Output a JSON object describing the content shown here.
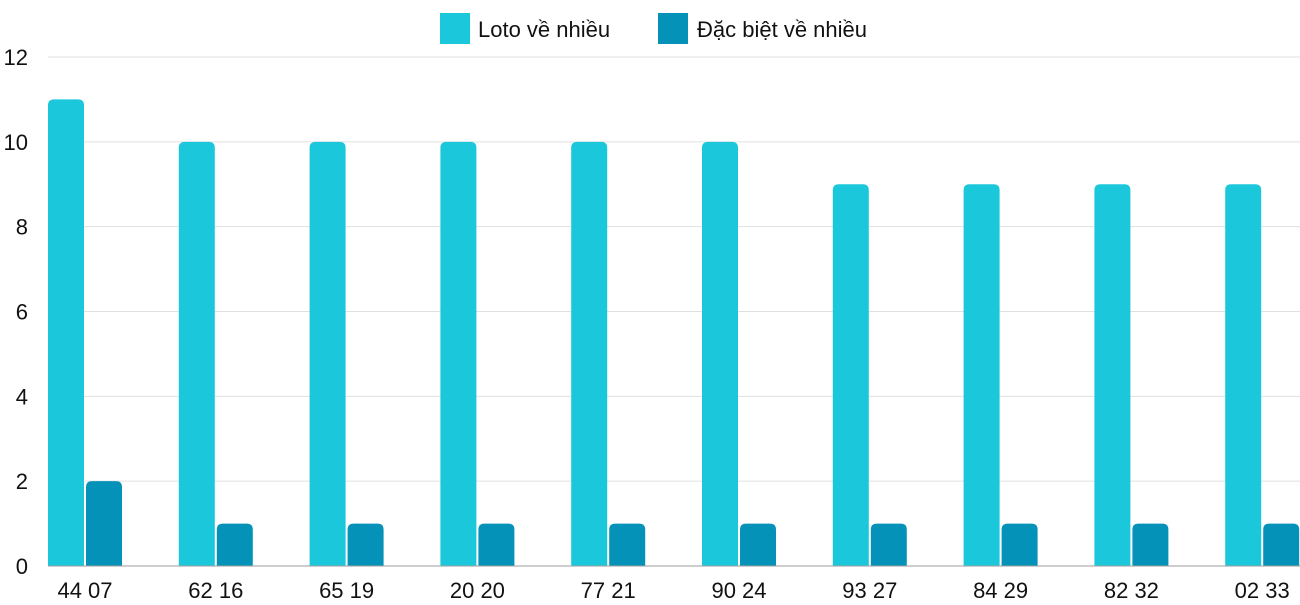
{
  "chart_data": {
    "type": "bar",
    "title": "",
    "xlabel": "",
    "ylabel": "",
    "categories": [
      "44 07",
      "62 16",
      "65 19",
      "20 20",
      "77 21",
      "90 24",
      "93 27",
      "84 29",
      "82 32",
      "02 33"
    ],
    "series": [
      {
        "name": "Loto về nhiều",
        "color": "#1bc8db",
        "values": [
          11,
          10,
          10,
          10,
          10,
          10,
          9,
          9,
          9,
          9
        ]
      },
      {
        "name": "Đặc biệt về nhiều",
        "color": "#0592b8",
        "values": [
          2,
          1,
          1,
          1,
          1,
          1,
          1,
          1,
          1,
          1
        ]
      }
    ],
    "ylim": [
      0,
      12
    ],
    "yticks": [
      0,
      2,
      4,
      6,
      8,
      10,
      12
    ],
    "grid": true,
    "legend_position": "top-center"
  }
}
